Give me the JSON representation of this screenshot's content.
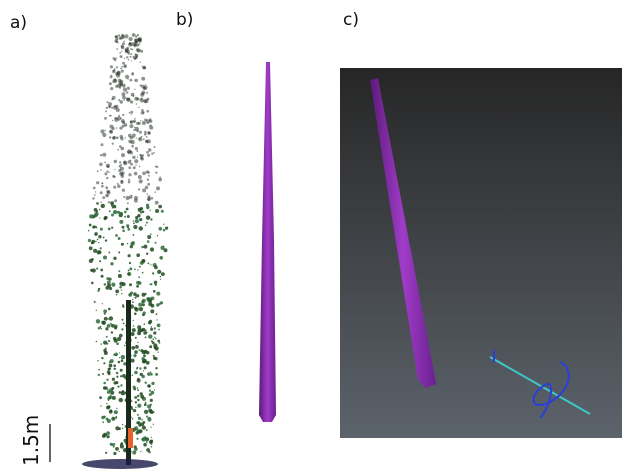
{
  "panels": [
    {
      "label": "a)"
    },
    {
      "label": "b)"
    },
    {
      "label": "c)"
    }
  ],
  "scale_bar": {
    "label": "1.5m"
  }
}
